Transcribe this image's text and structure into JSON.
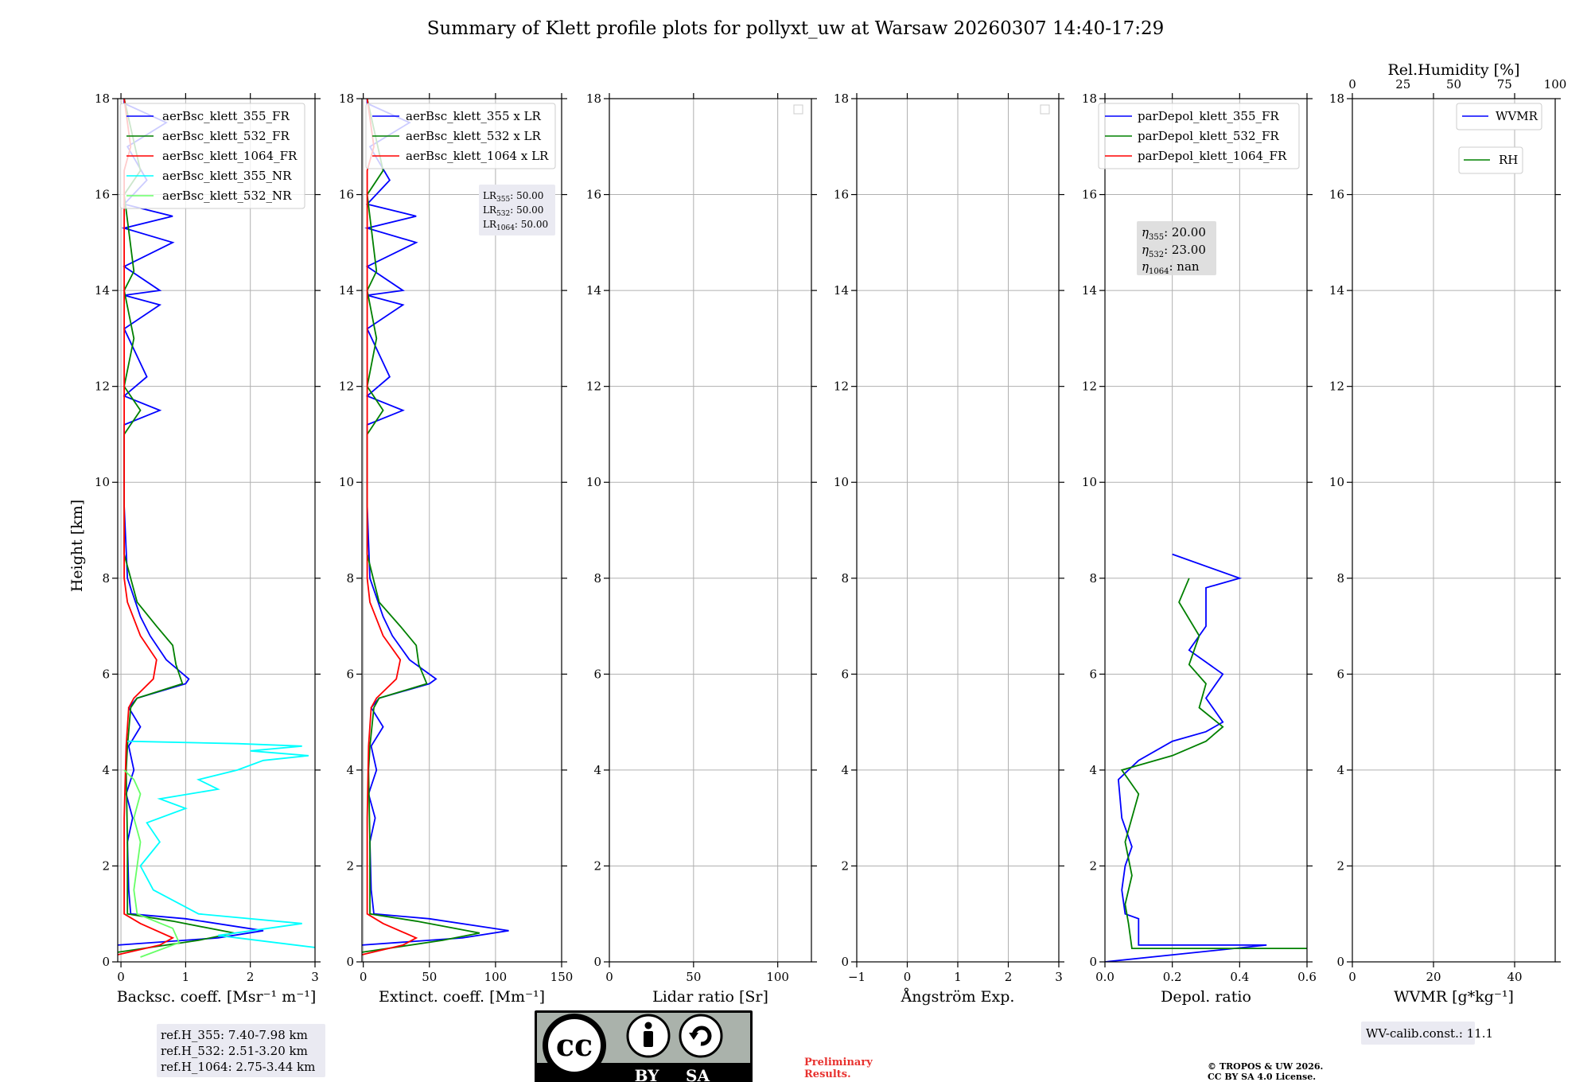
{
  "title": "Summary of Klett profile plots for pollyxt_uw at Warsaw 20260307 14:40-17:29",
  "y_axis_label": "Height [km]",
  "height_ticks": [
    "0",
    "2",
    "4",
    "6",
    "8",
    "10",
    "12",
    "14",
    "16",
    "18"
  ],
  "colors": {
    "c355": "#0000ff",
    "c532": "#008000",
    "c1064": "#ff0000",
    "nr355": "#00ffff",
    "nr532": "#66ff66"
  },
  "panels": [
    {
      "id": "bsc",
      "xlabel": "Backsc. coeff. [Msr⁻¹ m⁻¹]",
      "xticks": [
        "0",
        "1",
        "2",
        "3"
      ],
      "xlim": [
        -0.05,
        3
      ]
    },
    {
      "id": "ext",
      "xlabel": "Extinct. coeff. [Mm⁻¹]",
      "xticks": [
        "0",
        "50",
        "100",
        "150"
      ],
      "xlim": [
        -1,
        150
      ]
    },
    {
      "id": "lr",
      "xlabel": "Lidar ratio [Sr]",
      "xticks": [
        "0",
        "50",
        "100"
      ],
      "xlim": [
        0,
        120
      ]
    },
    {
      "id": "ang",
      "xlabel": "Ångström Exp.",
      "xticks": [
        "−1",
        "0",
        "1",
        "2",
        "3"
      ],
      "xlim": [
        -1,
        3
      ]
    },
    {
      "id": "depol",
      "xlabel": "Depol. ratio",
      "xticks": [
        "0.0",
        "0.2",
        "0.4",
        "0.6"
      ],
      "xlim": [
        0,
        0.6
      ]
    },
    {
      "id": "wv",
      "xlabel": "WVMR [g*kg⁻¹]",
      "xticks": [
        "0",
        "20",
        "40"
      ],
      "xlim": [
        0,
        50
      ],
      "top_label": "Rel.Humidity [%]",
      "top_ticks": [
        "0",
        "25",
        "50",
        "75",
        "100"
      ]
    }
  ],
  "legends": {
    "bsc": [
      "aerBsc_klett_355_FR",
      "aerBsc_klett_532_FR",
      "aerBsc_klett_1064_FR",
      "aerBsc_klett_355_NR",
      "aerBsc_klett_532_NR"
    ],
    "ext": [
      "aerBsc_klett_355 x LR",
      "aerBsc_klett_532 x LR",
      "aerBsc_klett_1064 x LR"
    ],
    "depol": [
      "parDepol_klett_355_FR",
      "parDepol_klett_532_FR",
      "parDepol_klett_1064_FR"
    ],
    "wv_wvmr": "WVMR",
    "wv_rh": "RH"
  },
  "lr_box": {
    "lr355": "50.00",
    "lr532": "50.00",
    "lr1064": "50.00"
  },
  "eta_box": {
    "eta355": "20.00",
    "eta532": "23.00",
    "eta1064": "nan"
  },
  "ref_heights": [
    "ref.H_355: 7.40-7.98 km",
    "ref.H_532: 2.51-3.20 km",
    "ref.H_1064: 2.75-3.44 km"
  ],
  "wv_calib": "WV-calib.const.: 11.1",
  "license_badge": {
    "by": "BY",
    "sa": "SA"
  },
  "preliminary": [
    "Preliminary",
    "Results."
  ],
  "copyright": [
    "© TROPOS & UW 2026.",
    "CC BY SA 4.0 License."
  ],
  "chart_data": {
    "type": "line",
    "title": "Summary of Klett profile plots for pollyxt_uw at Warsaw 20260307 14:40-17:29",
    "ylabel": "Height [km]",
    "ylim": [
      0,
      18
    ],
    "panels": [
      {
        "name": "Backscatter coefficient",
        "xlim": [
          -0.05,
          3
        ],
        "series": [
          {
            "name": "aerBsc_klett_355_FR",
            "color": "#0000ff",
            "x": [
              -0.05,
              1.5,
              2.2,
              1.0,
              0.15,
              0.12,
              0.1,
              0.18,
              0.08,
              0.2,
              0.12,
              0.3,
              0.12,
              0.25,
              1.0,
              1.05,
              0.7,
              0.45,
              0.3,
              0.1,
              0.05,
              0.05,
              0.6,
              0.05,
              0.4,
              0.05,
              0.6,
              0.05,
              0.6,
              0.05,
              0.8,
              0.05,
              0.8,
              0.05,
              0.4,
              0.1,
              0.7,
              0.05,
              0.05
            ],
            "y": [
              0.35,
              0.5,
              0.65,
              0.9,
              1.0,
              1.5,
              2.5,
              3.0,
              3.5,
              4.0,
              4.5,
              4.9,
              5.3,
              5.5,
              5.8,
              5.9,
              6.3,
              6.8,
              7.2,
              8.0,
              9.5,
              11.2,
              11.5,
              11.8,
              12.2,
              13.2,
              13.7,
              13.9,
              14.0,
              14.5,
              15.0,
              15.3,
              15.55,
              15.8,
              16.3,
              17.0,
              17.5,
              17.9,
              18.0
            ]
          },
          {
            "name": "aerBsc_klett_532_FR",
            "color": "#008000",
            "x": [
              -0.05,
              1.2,
              1.75,
              0.8,
              0.1,
              0.1,
              0.08,
              0.1,
              0.15,
              0.25,
              0.95,
              0.85,
              0.8,
              0.55,
              0.25,
              0.05,
              0.05,
              0.3,
              0.05,
              0.2,
              0.05,
              0.2,
              0.05,
              0.3,
              0.05
            ],
            "y": [
              0.2,
              0.45,
              0.6,
              0.85,
              1.0,
              2.5,
              4.0,
              4.5,
              5.3,
              5.5,
              5.8,
              6.2,
              6.6,
              7.0,
              7.5,
              8.5,
              11.0,
              11.5,
              12.0,
              13.0,
              14.0,
              14.4,
              16.0,
              16.5,
              18.0
            ]
          },
          {
            "name": "aerBsc_klett_1064_FR",
            "color": "#ff0000",
            "x": [
              -0.05,
              0.6,
              0.8,
              0.3,
              0.05,
              0.05,
              0.08,
              0.12,
              0.2,
              0.5,
              0.55,
              0.3,
              0.1,
              0.05,
              0.05,
              0.15,
              0.05
            ],
            "y": [
              0.15,
              0.35,
              0.5,
              0.8,
              1.0,
              3.0,
              4.5,
              5.3,
              5.5,
              5.9,
              6.3,
              6.8,
              7.5,
              8.0,
              16.5,
              17.0,
              18.0
            ]
          },
          {
            "name": "aerBsc_klett_355_NR",
            "color": "#00ffff",
            "x": [
              3.0,
              1.5,
              2.8,
              1.2,
              0.5,
              0.3,
              0.6,
              0.4,
              1.0,
              0.6,
              1.5,
              1.2,
              1.8,
              2.2,
              2.9,
              2.0,
              2.8,
              1.8,
              0.1
            ],
            "y": [
              0.3,
              0.55,
              0.8,
              1.0,
              1.5,
              2.0,
              2.5,
              2.9,
              3.2,
              3.4,
              3.6,
              3.8,
              4.0,
              4.2,
              4.3,
              4.4,
              4.5,
              4.55,
              4.6
            ]
          },
          {
            "name": "aerBsc_klett_532_NR",
            "color": "#66ff66",
            "x": [
              0.3,
              0.9,
              0.8,
              0.25,
              0.2,
              0.3,
              0.2,
              0.3,
              0.2,
              0.05
            ],
            "y": [
              0.1,
              0.4,
              0.7,
              1.0,
              1.5,
              2.5,
              3.0,
              3.5,
              3.8,
              4.0
            ]
          }
        ]
      },
      {
        "name": "Extinction coefficient",
        "xlim": [
          -1,
          150
        ],
        "series": [
          {
            "name": "aerBsc_klett_355 x LR",
            "color": "#0000ff",
            "x": [
              -1,
              75,
              110,
              50,
              8,
              6,
              5,
              9,
              4,
              10,
              6,
              15,
              6,
              12,
              50,
              55,
              35,
              22,
              15,
              5,
              3,
              3,
              30,
              3,
              20,
              3,
              30,
              3,
              30,
              3,
              40,
              3,
              40,
              3,
              20,
              5,
              35,
              3,
              3
            ],
            "y": [
              0.35,
              0.5,
              0.65,
              0.9,
              1.0,
              1.5,
              2.5,
              3.0,
              3.5,
              4.0,
              4.5,
              4.9,
              5.3,
              5.5,
              5.8,
              5.9,
              6.3,
              6.8,
              7.2,
              8.0,
              9.5,
              11.2,
              11.5,
              11.8,
              12.2,
              13.2,
              13.7,
              13.9,
              14.0,
              14.5,
              15.0,
              15.3,
              15.55,
              15.8,
              16.3,
              17.0,
              17.5,
              17.9,
              18.0
            ]
          },
          {
            "name": "aerBsc_klett_532 x LR",
            "color": "#008000",
            "x": [
              -1,
              60,
              88,
              40,
              5,
              5,
              4,
              5,
              8,
              12,
              48,
              42,
              40,
              28,
              12,
              3,
              3,
              15,
              3,
              10,
              3,
              10,
              3,
              15,
              3
            ],
            "y": [
              0.2,
              0.45,
              0.6,
              0.85,
              1.0,
              2.5,
              4.0,
              4.5,
              5.3,
              5.5,
              5.8,
              6.2,
              6.6,
              7.0,
              7.5,
              8.5,
              11.0,
              11.5,
              12.0,
              13.0,
              14.0,
              14.4,
              16.0,
              16.5,
              18.0
            ]
          },
          {
            "name": "aerBsc_klett_1064 x LR",
            "color": "#ff0000",
            "x": [
              -1,
              30,
              40,
              15,
              3,
              3,
              4,
              6,
              10,
              25,
              28,
              15,
              5,
              3,
              3,
              8,
              3
            ],
            "y": [
              0.15,
              0.35,
              0.5,
              0.8,
              1.0,
              3.0,
              4.5,
              5.3,
              5.5,
              5.9,
              6.3,
              6.8,
              7.5,
              8.0,
              16.5,
              17.0,
              18.0
            ]
          }
        ]
      },
      {
        "name": "Lidar ratio",
        "xlim": [
          0,
          120
        ],
        "series": []
      },
      {
        "name": "Angstrom exponent",
        "xlim": [
          -1,
          3
        ],
        "series": []
      },
      {
        "name": "Depolarization ratio",
        "xlim": [
          0,
          0.6
        ],
        "series": [
          {
            "name": "parDepol_klett_355_FR",
            "color": "#0000ff",
            "x": [
              0.0,
              0.48,
              0.1,
              0.1,
              0.06,
              0.05,
              0.06,
              0.08,
              0.05,
              0.04,
              0.1,
              0.2,
              0.3,
              0.35,
              0.3,
              0.35,
              0.25,
              0.3,
              0.3,
              0.4,
              0.2
            ],
            "y": [
              0.0,
              0.35,
              0.35,
              0.9,
              1.0,
              1.5,
              2.0,
              2.4,
              3.0,
              3.8,
              4.2,
              4.6,
              4.8,
              5.0,
              5.5,
              6.0,
              6.5,
              7.0,
              7.8,
              8.0,
              8.5
            ]
          },
          {
            "name": "parDepol_klett_532_FR",
            "color": "#008000",
            "x": [
              0.6,
              0.08,
              0.07,
              0.06,
              0.08,
              0.06,
              0.1,
              0.05,
              0.2,
              0.3,
              0.35,
              0.28,
              0.3,
              0.25,
              0.28,
              0.22,
              0.25
            ],
            "y": [
              0.28,
              0.28,
              0.8,
              1.2,
              1.8,
              2.5,
              3.5,
              4.0,
              4.3,
              4.6,
              4.9,
              5.3,
              5.8,
              6.2,
              6.8,
              7.5,
              8.0
            ]
          }
        ]
      },
      {
        "name": "WV mixing ratio / RH",
        "xlim": [
          0,
          50
        ],
        "series": []
      }
    ]
  }
}
